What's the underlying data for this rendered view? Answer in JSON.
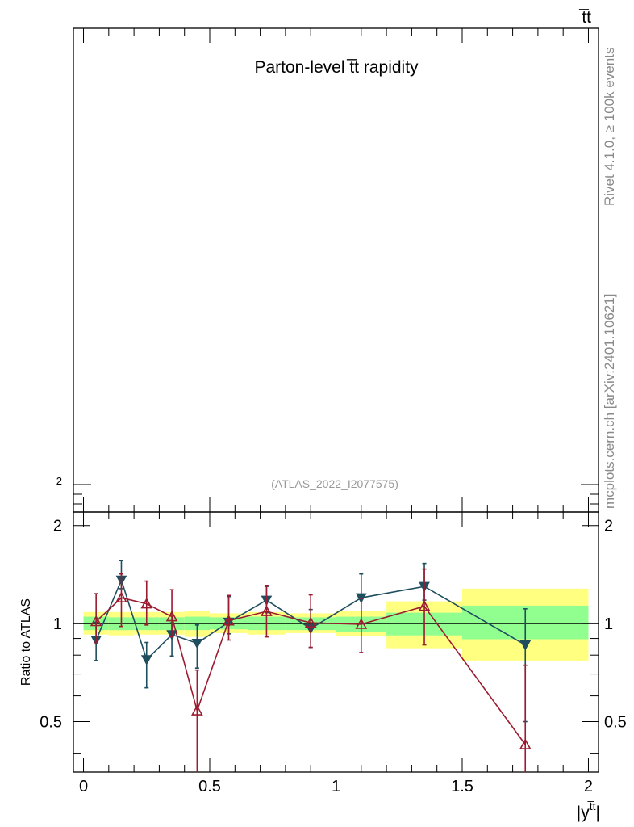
{
  "chart_data": {
    "type": "line",
    "title": "Parton-level t̅t rapidity",
    "process_label": "t̅t",
    "analysis_id": "(ATLAS_2022_I2077575)",
    "top_panel": {
      "ytick_labels": [
        "2"
      ]
    },
    "ratio_panel": {
      "ylabel": "Ratio to ATLAS",
      "ylim": [
        0.35,
        2.2
      ],
      "yscale": "log",
      "yticks": [
        0.5,
        1,
        2
      ],
      "ytick_labels": [
        "0.5",
        "1",
        "2"
      ],
      "reference_line": 1
    },
    "xlabel": "|y",
    "xlabel_sup": "t̅t",
    "xlabel_end": "|",
    "xlim": [
      -0.04,
      2.04
    ],
    "xticks": [
      0,
      0.5,
      1,
      1.5,
      2
    ],
    "xtick_labels": [
      "0",
      "0.5",
      "1",
      "1.5",
      "2"
    ],
    "bins": [
      {
        "lo": 0.0,
        "hi": 0.1,
        "green": [
          0.955,
          1.05
        ],
        "yellow": [
          0.925,
          1.085
        ]
      },
      {
        "lo": 0.1,
        "hi": 0.2,
        "green": [
          0.955,
          1.045
        ],
        "yellow": [
          0.92,
          1.085
        ]
      },
      {
        "lo": 0.2,
        "hi": 0.3,
        "green": [
          0.955,
          1.045
        ],
        "yellow": [
          0.925,
          1.085
        ]
      },
      {
        "lo": 0.3,
        "hi": 0.4,
        "green": [
          0.955,
          1.045
        ],
        "yellow": [
          0.925,
          1.085
        ]
      },
      {
        "lo": 0.4,
        "hi": 0.5,
        "green": [
          0.955,
          1.05
        ],
        "yellow": [
          0.91,
          1.095
        ]
      },
      {
        "lo": 0.5,
        "hi": 0.65,
        "green": [
          0.96,
          1.045
        ],
        "yellow": [
          0.935,
          1.075
        ]
      },
      {
        "lo": 0.65,
        "hi": 0.8,
        "green": [
          0.955,
          1.05
        ],
        "yellow": [
          0.925,
          1.085
        ]
      },
      {
        "lo": 0.8,
        "hi": 1.0,
        "green": [
          0.955,
          1.045
        ],
        "yellow": [
          0.935,
          1.075
        ]
      },
      {
        "lo": 1.0,
        "hi": 1.2,
        "green": [
          0.945,
          1.05
        ],
        "yellow": [
          0.915,
          1.095
        ]
      },
      {
        "lo": 1.2,
        "hi": 1.5,
        "green": [
          0.92,
          1.08
        ],
        "yellow": [
          0.84,
          1.17
        ]
      },
      {
        "lo": 1.5,
        "hi": 2.0,
        "green": [
          0.895,
          1.135
        ],
        "yellow": [
          0.77,
          1.28
        ]
      }
    ],
    "series": [
      {
        "name": "series-blue",
        "color": "#1f4e5f",
        "marker": "filled-down-triangle",
        "x": [
          0.05,
          0.15,
          0.25,
          0.35,
          0.45,
          0.575,
          0.725,
          0.9,
          1.1,
          1.35,
          1.75
        ],
        "y": [
          0.89,
          1.36,
          0.775,
          0.925,
          0.87,
          1.01,
          1.18,
          0.965,
          1.2,
          1.3,
          0.86
        ],
        "err_lo": [
          0.12,
          0.08,
          0.14,
          0.13,
          0.14,
          0.08,
          0.1,
          0.12,
          0.2,
          0.12,
          0.36
        ],
        "err_hi": [
          0.12,
          0.2,
          0.1,
          0.08,
          0.12,
          0.2,
          0.12,
          0.14,
          0.22,
          0.23,
          0.25
        ]
      },
      {
        "name": "series-red",
        "color": "#9b1b30",
        "marker": "open-up-triangle",
        "x": [
          0.05,
          0.15,
          0.25,
          0.35,
          0.45,
          0.575,
          0.725,
          0.9,
          1.1,
          1.35,
          1.75
        ],
        "y": [
          1.015,
          1.2,
          1.15,
          1.05,
          0.54,
          1.02,
          1.09,
          1.005,
          0.995,
          1.13,
          0.425
        ],
        "err_lo": [
          0.14,
          0.22,
          0.16,
          0.14,
          0.2,
          0.13,
          0.18,
          0.16,
          0.18,
          0.27,
          0.08
        ],
        "err_hi": [
          0.22,
          0.22,
          0.2,
          0.22,
          0.18,
          0.2,
          0.22,
          0.22,
          0.2,
          0.34,
          0.32
        ]
      }
    ]
  },
  "side_labels": {
    "rivet": "Rivet 4.1.0, ≥ 100k events",
    "mcplots": "mcplots.cern.ch [arXiv:2401.10621]"
  }
}
